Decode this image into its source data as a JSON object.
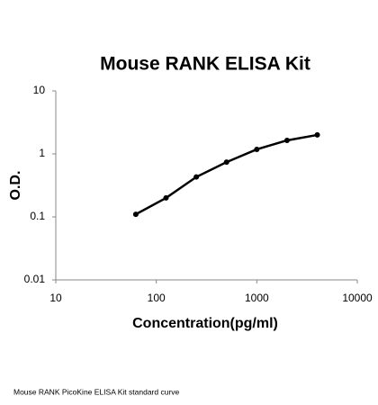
{
  "chart_data": {
    "type": "line",
    "title": "Mouse RANK ELISA Kit",
    "x_label": "Concentration(pg/ml)",
    "y_label": "O.D.",
    "caption": "Mouse RANK PicoKine ELISA Kit standard curve",
    "x": [
      62.5,
      125,
      250,
      500,
      1000,
      2000,
      4000
    ],
    "series": [
      {
        "name": "Standard",
        "color": "#000000",
        "values": [
          0.11,
          0.2,
          0.43,
          0.74,
          1.18,
          1.64,
          2.0
        ]
      }
    ],
    "xlim": [
      10,
      10000
    ],
    "ylim": [
      0.01,
      10
    ],
    "xticks": [
      10,
      100,
      1000,
      10000
    ],
    "yticks": [
      0.01,
      0.1,
      1,
      10
    ],
    "xscale": "log",
    "yscale": "log",
    "grid": false
  }
}
